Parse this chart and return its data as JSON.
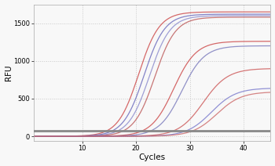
{
  "title": "",
  "xlabel": "Cycles",
  "ylabel": "RFU",
  "xlim": [
    1,
    45
  ],
  "ylim": [
    -60,
    1750
  ],
  "yticks": [
    0,
    500,
    1000,
    1500
  ],
  "xticks": [
    10,
    20,
    30,
    40
  ],
  "background_color": "#f8f8f8",
  "grid_color": "#c8c8c8",
  "curves": [
    {
      "midpoint": 20.5,
      "L": 1650,
      "k": 0.52,
      "color": "#cc4444",
      "lw": 0.9
    },
    {
      "midpoint": 21.5,
      "L": 1620,
      "k": 0.52,
      "color": "#6666bb",
      "lw": 0.9
    },
    {
      "midpoint": 22.5,
      "L": 1600,
      "k": 0.52,
      "color": "#8888cc",
      "lw": 0.9
    },
    {
      "midpoint": 23.5,
      "L": 1580,
      "k": 0.52,
      "color": "#bb5555",
      "lw": 0.9
    },
    {
      "midpoint": 27.0,
      "L": 1260,
      "k": 0.48,
      "color": "#cc4444",
      "lw": 0.9
    },
    {
      "midpoint": 28.5,
      "L": 1200,
      "k": 0.48,
      "color": "#7777bb",
      "lw": 0.9
    },
    {
      "midpoint": 32.5,
      "L": 900,
      "k": 0.44,
      "color": "#cc5555",
      "lw": 0.9
    },
    {
      "midpoint": 34.0,
      "L": 640,
      "k": 0.44,
      "color": "#7777cc",
      "lw": 0.9
    },
    {
      "midpoint": 35.0,
      "L": 590,
      "k": 0.44,
      "color": "#cc6666",
      "lw": 0.9
    }
  ],
  "threshold_y": 72,
  "threshold_color": "#888888",
  "threshold_lw": 2.0
}
